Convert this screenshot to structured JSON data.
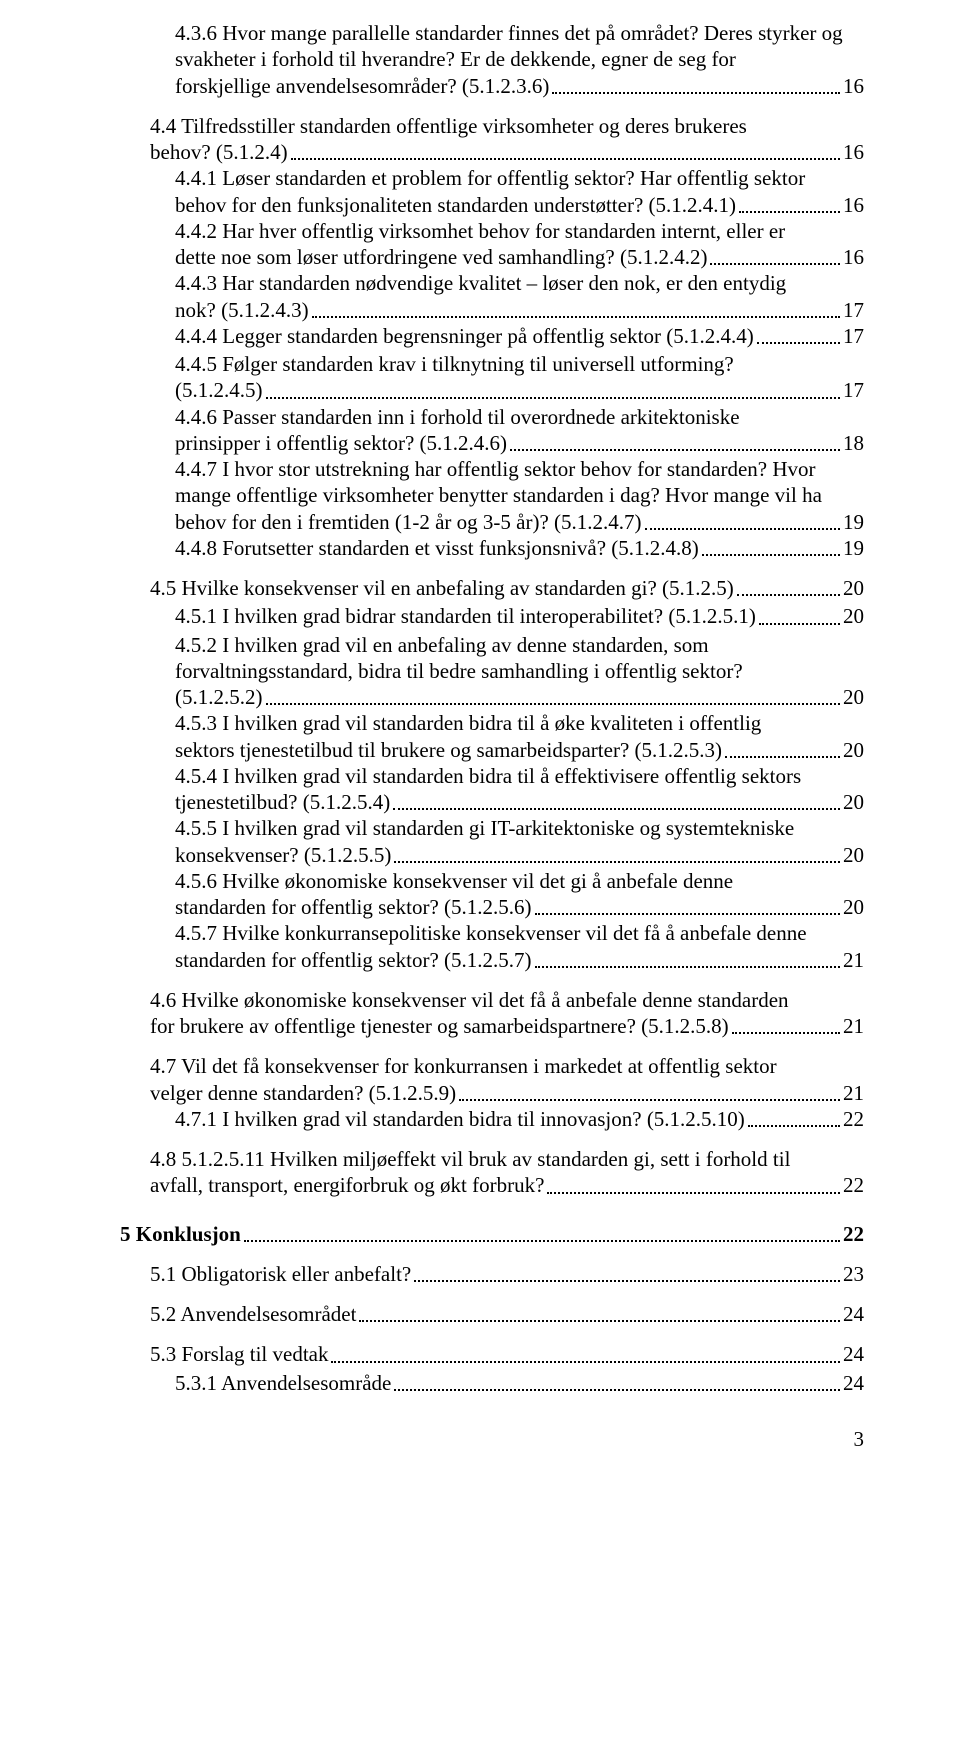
{
  "toc": {
    "e436": {
      "lead": "4.3.6  Hvor mange parallelle standarder finnes det på området? Deres styrker og svakheter i forhold til hverandre? Er de dekkende, egner de seg for",
      "tail": "forskjellige anvendelsesområder? (5.1.2.3.6)",
      "page": "16"
    },
    "e44": {
      "lead": "4.4  Tilfredsstiller standarden offentlige virksomheter og deres brukeres",
      "tail": "behov? (5.1.2.4)",
      "page": "16"
    },
    "e441": {
      "lead": "4.4.1  Løser standarden et problem for offentlig sektor? Har offentlig sektor",
      "tail": "behov for den funksjonaliteten standarden understøtter? (5.1.2.4.1)",
      "page": "16"
    },
    "e442": {
      "lead": "4.4.2  Har hver offentlig virksomhet behov for standarden internt, eller er",
      "tail": "dette noe som løser utfordringene ved samhandling? (5.1.2.4.2)",
      "page": "16"
    },
    "e443": {
      "lead": "4.4.3  Har standarden nødvendige kvalitet – løser den nok, er den entydig",
      "tail": "nok? (5.1.2.4.3)",
      "page": "17"
    },
    "e444": {
      "tail": "4.4.4  Legger standarden begrensninger på offentlig sektor (5.1.2.4.4)",
      "page": "17"
    },
    "e445": {
      "lead": "4.4.5  Følger standarden krav i tilknytning til universell utforming?",
      "tail": "(5.1.2.4.5)",
      "page": "17"
    },
    "e446": {
      "lead": "4.4.6  Passer standarden inn i forhold til overordnede arkitektoniske",
      "tail": "prinsipper i offentlig sektor? (5.1.2.4.6)",
      "page": "18"
    },
    "e447": {
      "lead": "4.4.7  I hvor stor utstrekning har offentlig sektor behov for standarden? Hvor mange offentlige virksomheter benytter standarden i dag? Hvor mange vil ha",
      "tail": "behov for den i fremtiden (1-2 år og 3-5 år)? (5.1.2.4.7)",
      "page": "19"
    },
    "e448": {
      "tail": "4.4.8  Forutsetter standarden et visst funksjonsnivå? (5.1.2.4.8)",
      "page": "19"
    },
    "e45": {
      "tail": "4.5  Hvilke konsekvenser vil en anbefaling av standarden gi? (5.1.2.5)",
      "page": "20"
    },
    "e451": {
      "tail": "4.5.1  I hvilken grad bidrar standarden til interoperabilitet? (5.1.2.5.1)",
      "page": "20"
    },
    "e452": {
      "lead": "4.5.2  I hvilken grad vil en anbefaling av denne standarden, som forvaltningsstandard, bidra til bedre samhandling i offentlig sektor?",
      "tail": "(5.1.2.5.2)",
      "page": "20"
    },
    "e453": {
      "lead": "4.5.3  I hvilken grad vil standarden bidra til å øke kvaliteten i offentlig",
      "tail": "sektors tjenestetilbud til brukere og samarbeidsparter? (5.1.2.5.3)",
      "page": "20"
    },
    "e454": {
      "lead": "4.5.4  I hvilken grad vil standarden bidra til å effektivisere offentlig sektors",
      "tail": "tjenestetilbud? (5.1.2.5.4)",
      "page": "20"
    },
    "e455": {
      "lead": "4.5.5  I hvilken grad vil standarden gi IT-arkitektoniske og systemtekniske",
      "tail": "konsekvenser? (5.1.2.5.5)",
      "page": "20"
    },
    "e456": {
      "lead": "4.5.6  Hvilke økonomiske konsekvenser vil det gi å anbefale denne",
      "tail": "standarden for offentlig sektor? (5.1.2.5.6)",
      "page": "20"
    },
    "e457": {
      "lead": "4.5.7  Hvilke konkurransepolitiske konsekvenser vil det få å anbefale denne",
      "tail": "standarden for offentlig sektor? (5.1.2.5.7)",
      "page": "21"
    },
    "e46": {
      "lead": "4.6  Hvilke økonomiske konsekvenser vil det få å anbefale denne standarden",
      "tail": "for brukere av offentlige tjenester og samarbeidspartnere?  (5.1.2.5.8)",
      "page": "21"
    },
    "e47": {
      "lead": "4.7  Vil det få konsekvenser for konkurransen i markedet at offentlig sektor",
      "tail": "velger denne standarden? (5.1.2.5.9)",
      "page": "21"
    },
    "e471": {
      "tail": "4.7.1  I hvilken grad vil standarden bidra til innovasjon? (5.1.2.5.10)",
      "page": "22"
    },
    "e48": {
      "lead": "4.8  5.1.2.5.11 Hvilken miljøeffekt vil bruk av standarden gi, sett i forhold til",
      "tail": "avfall, transport, energiforbruk og økt forbruk?",
      "page": "22"
    },
    "e5": {
      "tail": "5     Konklusjon",
      "page": "22"
    },
    "e51": {
      "tail": "5.1  Obligatorisk eller anbefalt?",
      "page": "23"
    },
    "e52": {
      "tail": "5.2  Anvendelsesområdet",
      "page": "24"
    },
    "e53": {
      "tail": "5.3  Forslag til vedtak",
      "page": "24"
    },
    "e531": {
      "tail": "5.3.1  Anvendelsesområde",
      "page": "24"
    }
  },
  "page_number": "3"
}
